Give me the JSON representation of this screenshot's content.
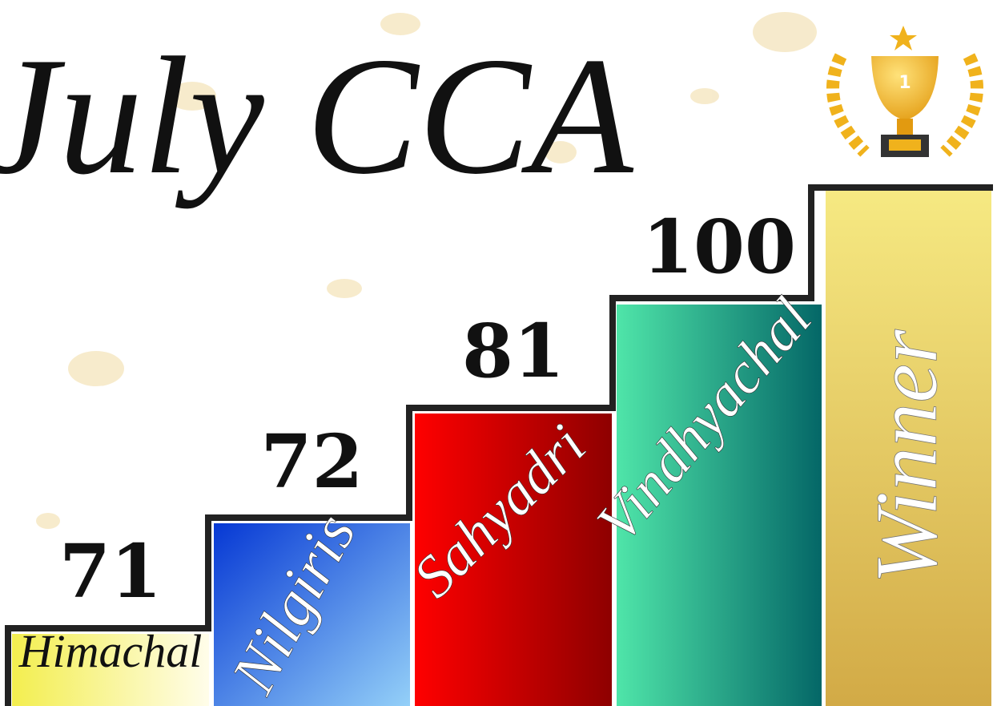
{
  "title": "July CCA",
  "trophy": {
    "rank": "1"
  },
  "steps": [
    {
      "house": "Himachal",
      "score": 71
    },
    {
      "house": "Nilgiris",
      "score": 72
    },
    {
      "house": "Sahyadri",
      "score": 81
    },
    {
      "house": "Vindhyachal",
      "score": 100
    }
  ],
  "winner_label": "Winner"
}
